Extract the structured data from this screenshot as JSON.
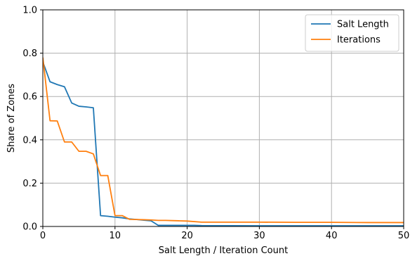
{
  "chart_data": {
    "type": "line",
    "xlabel": "Salt Length / Iteration Count",
    "ylabel": "Share of Zones",
    "xlim": [
      0,
      50
    ],
    "ylim": [
      0,
      1
    ],
    "xticks": [
      0,
      10,
      20,
      30,
      40,
      50
    ],
    "yticks": [
      0.0,
      0.2,
      0.4,
      0.6,
      0.8,
      1.0
    ],
    "xtick_labels": [
      "0",
      "10",
      "20",
      "30",
      "40",
      "50"
    ],
    "ytick_labels": [
      "0.0",
      "0.2",
      "0.4",
      "0.6",
      "0.8",
      "1.0"
    ],
    "grid": true,
    "legend_position": "top-right",
    "series": [
      {
        "name": "Salt Length",
        "color": "#1f77b4",
        "x": [
          0,
          1,
          2,
          3,
          4,
          5,
          6,
          7,
          8,
          9,
          10,
          11,
          12,
          13,
          14,
          15,
          16,
          17,
          18,
          19,
          20,
          21,
          22,
          30,
          40,
          50
        ],
        "y": [
          0.76,
          0.668,
          0.655,
          0.645,
          0.57,
          0.555,
          0.552,
          0.548,
          0.05,
          0.047,
          0.043,
          0.04,
          0.035,
          0.032,
          0.029,
          0.026,
          0.005,
          0.005,
          0.005,
          0.005,
          0.005,
          0.005,
          0.004,
          0.003,
          0.003,
          0.003
        ]
      },
      {
        "name": "Iterations",
        "color": "#ff7f0e",
        "x": [
          0,
          1,
          2,
          3,
          4,
          5,
          6,
          7,
          8,
          9,
          10,
          11,
          12,
          13,
          14,
          15,
          16,
          17,
          18,
          19,
          20,
          22,
          25,
          30,
          35,
          40,
          45,
          50
        ],
        "y": [
          0.78,
          0.488,
          0.487,
          0.39,
          0.39,
          0.347,
          0.347,
          0.335,
          0.235,
          0.235,
          0.05,
          0.05,
          0.033,
          0.032,
          0.031,
          0.03,
          0.028,
          0.028,
          0.027,
          0.026,
          0.025,
          0.02,
          0.02,
          0.02,
          0.019,
          0.019,
          0.018,
          0.018
        ]
      }
    ]
  }
}
